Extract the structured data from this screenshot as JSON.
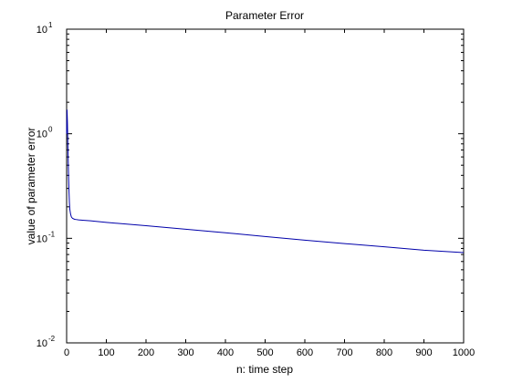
{
  "chart_data": {
    "type": "line",
    "title": "Parameter Error",
    "xlabel": "n: time step",
    "ylabel": "value of parameter error",
    "xlim": [
      0,
      1000
    ],
    "ylim": [
      0.01,
      10
    ],
    "yscale": "log",
    "grid": false,
    "x_ticks": [
      "0",
      "100",
      "200",
      "300",
      "400",
      "500",
      "600",
      "700",
      "800",
      "900",
      "1000"
    ],
    "x_tick_values": [
      0,
      100,
      200,
      300,
      400,
      500,
      600,
      700,
      800,
      900,
      1000
    ],
    "y_ticks": [
      {
        "base": "10",
        "exp": "-2",
        "value": 0.01
      },
      {
        "base": "10",
        "exp": "-1",
        "value": 0.1
      },
      {
        "base": "10",
        "exp": "0",
        "value": 1
      },
      {
        "base": "10",
        "exp": "1",
        "value": 10
      }
    ],
    "series": [
      {
        "color": "#0000aa",
        "x": [
          0,
          1,
          2,
          3,
          4,
          5,
          6,
          7,
          8,
          10,
          12,
          15,
          20,
          25,
          30,
          40,
          60,
          100,
          200,
          300,
          400,
          500,
          600,
          700,
          800,
          900,
          1000
        ],
        "y": [
          1.0,
          1.7,
          1.3,
          0.8,
          0.55,
          0.38,
          0.28,
          0.22,
          0.19,
          0.17,
          0.16,
          0.155,
          0.152,
          0.151,
          0.15,
          0.149,
          0.147,
          0.142,
          0.132,
          0.122,
          0.113,
          0.104,
          0.096,
          0.089,
          0.083,
          0.077,
          0.073
        ]
      }
    ]
  }
}
